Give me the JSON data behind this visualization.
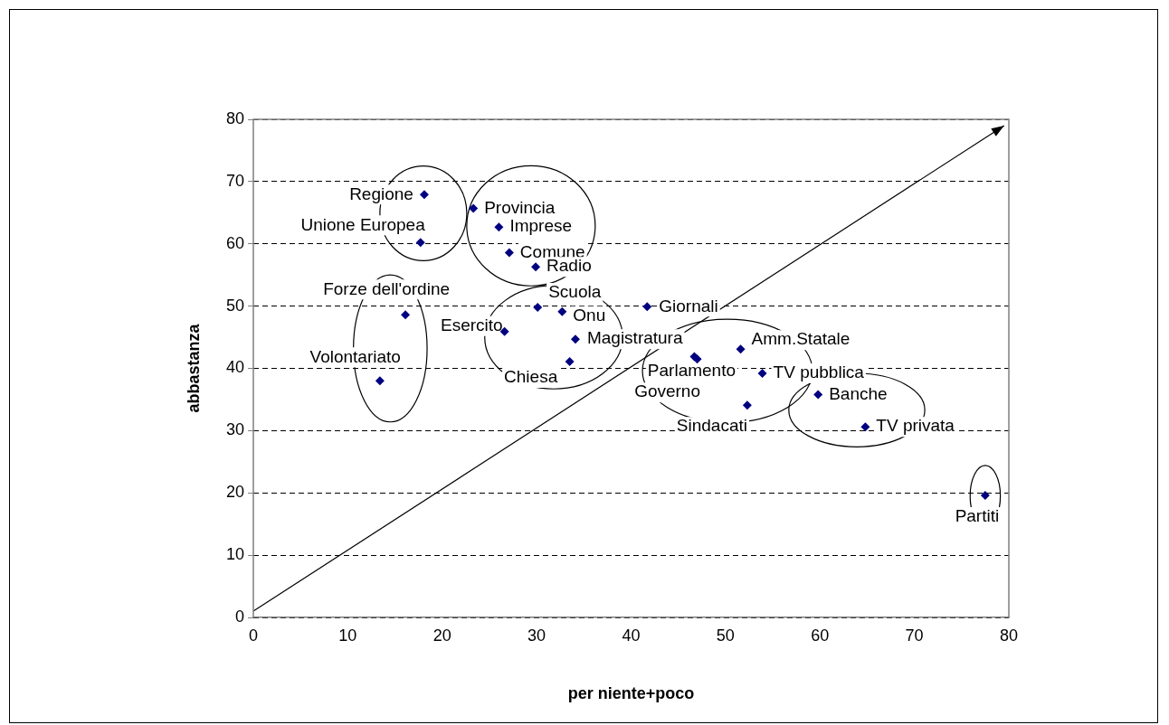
{
  "chart_data": {
    "type": "scatter",
    "xlabel": "per niente+poco",
    "ylabel": "abbastanza",
    "x": [
      18.1,
      17.7,
      23.3,
      26.0,
      27.1,
      29.9,
      16.1,
      13.4,
      26.6,
      30.1,
      32.7,
      34.1,
      33.5,
      41.7,
      46.7,
      47.0,
      51.6,
      53.9,
      59.8,
      52.3,
      64.8,
      77.5
    ],
    "series": [
      {
        "color": "#000080",
        "values": [
          67.9,
          60.2,
          65.7,
          62.7,
          58.6,
          56.3,
          48.6,
          38.0,
          45.9,
          49.8,
          49.1,
          44.7,
          41.1,
          49.9,
          41.9,
          41.5,
          43.1,
          39.2,
          35.8,
          34.1,
          30.6,
          19.6
        ]
      }
    ],
    "xlim": [
      0,
      80
    ],
    "xticks": [
      0,
      10,
      20,
      30,
      40,
      50,
      60,
      70,
      80
    ],
    "ylim": [
      0,
      80
    ],
    "yticks": [
      0,
      10,
      20,
      30,
      40,
      50,
      60,
      70,
      80
    ],
    "grid": "y",
    "legend": false,
    "marker": "diamond",
    "annotations": [
      {
        "text": "Regione",
        "x": 18.1,
        "y": 67.9
      },
      {
        "text": "Unione Europea",
        "x": 17.7,
        "y": 60.2
      },
      {
        "text": "Provincia",
        "x": 23.3,
        "y": 65.7
      },
      {
        "text": "Imprese",
        "x": 26.0,
        "y": 62.7
      },
      {
        "text": "Comune",
        "x": 27.1,
        "y": 58.6
      },
      {
        "text": "Radio",
        "x": 29.9,
        "y": 56.3
      },
      {
        "text": "Forze dell'ordine",
        "x": 16.1,
        "y": 48.6
      },
      {
        "text": "Volontariato",
        "x": 13.4,
        "y": 38.0
      },
      {
        "text": "Esercito",
        "x": 26.6,
        "y": 45.9
      },
      {
        "text": "Scuola",
        "x": 30.1,
        "y": 49.8
      },
      {
        "text": "Onu",
        "x": 32.7,
        "y": 49.1
      },
      {
        "text": "Magistratura",
        "x": 34.1,
        "y": 44.7
      },
      {
        "text": "Chiesa",
        "x": 33.5,
        "y": 41.1
      },
      {
        "text": "Giornali",
        "x": 41.7,
        "y": 49.9
      },
      {
        "text": "Parlamento",
        "x": 46.7,
        "y": 41.9
      },
      {
        "text": "Governo",
        "x": 47.0,
        "y": 41.5
      },
      {
        "text": "Amm.Statale",
        "x": 51.6,
        "y": 43.1
      },
      {
        "text": "TV pubblica",
        "x": 53.9,
        "y": 39.2
      },
      {
        "text": "Banche",
        "x": 59.8,
        "y": 35.8
      },
      {
        "text": "Sindacati",
        "x": 52.3,
        "y": 34.1
      },
      {
        "text": "TV privata",
        "x": 64.8,
        "y": 30.6
      },
      {
        "text": "Partiti",
        "x": 77.5,
        "y": 19.6
      }
    ]
  }
}
